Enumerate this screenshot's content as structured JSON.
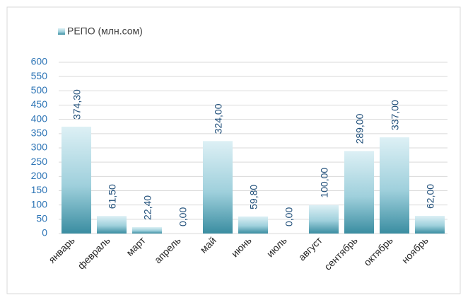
{
  "chart_data": {
    "type": "bar",
    "legend": "РЕПО (млн.сом)",
    "categories": [
      "январь",
      "февраль",
      "март",
      "апрель",
      "май",
      "июнь",
      "июль",
      "август",
      "сентябрь",
      "октябрь",
      "ноябрь"
    ],
    "values": [
      374.3,
      61.5,
      22.4,
      0,
      324,
      59.8,
      0,
      100,
      289,
      337,
      62
    ],
    "value_labels": [
      "374,30",
      "61,50",
      "22,40",
      "0,00",
      "324,00",
      "59,80",
      "0,00",
      "100,00",
      "289,00",
      "337,00",
      "62,00"
    ],
    "color": "#4a9db2",
    "ylim": [
      0,
      600
    ],
    "yticks": [
      0,
      50,
      100,
      150,
      200,
      250,
      300,
      350,
      400,
      450,
      500,
      550,
      600
    ],
    "grid": true
  }
}
